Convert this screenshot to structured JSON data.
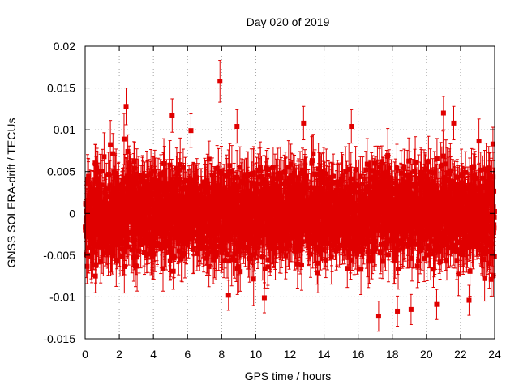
{
  "chart_data": {
    "type": "scatter",
    "title": "Day 020 of 2019",
    "xlabel": "GPS time / hours",
    "ylabel": "GNSS SOLERA-drift / TECUs",
    "xlim": [
      0,
      24
    ],
    "ylim": [
      -0.015,
      0.02
    ],
    "x_ticks": [
      0,
      2,
      4,
      6,
      8,
      10,
      12,
      14,
      16,
      18,
      20,
      22,
      24
    ],
    "x_tick_labels": [
      "0",
      "2",
      "4",
      "6",
      "8",
      "10",
      "12",
      "14",
      "16",
      "18",
      "20",
      "22",
      "24"
    ],
    "y_ticks": [
      -0.015,
      -0.01,
      -0.005,
      0,
      0.005,
      0.01,
      0.015,
      0.02
    ],
    "y_tick_labels": [
      "-0.015",
      "-0.01",
      "-0.005",
      "0",
      "0.005",
      "0.01",
      "0.015",
      "0.02"
    ],
    "grid": true,
    "series": [
      {
        "name": "SOLERA-drift",
        "color": "#e00000",
        "marker": "square",
        "error_bars": true,
        "dense_points": {
          "count": 2880,
          "x_range": [
            0,
            24
          ],
          "y_spread_sd": 0.0035,
          "y_mean": 0.0,
          "error_half_width": 0.0025
        },
        "notable_points": [
          {
            "x": 2.4,
            "y": 0.0128,
            "err": 0.0022
          },
          {
            "x": 7.9,
            "y": 0.0158,
            "err": 0.0025
          },
          {
            "x": 5.1,
            "y": 0.0117,
            "err": 0.002
          },
          {
            "x": 6.2,
            "y": 0.0099,
            "err": 0.002
          },
          {
            "x": 8.9,
            "y": 0.0104,
            "err": 0.002
          },
          {
            "x": 12.8,
            "y": 0.0108,
            "err": 0.002
          },
          {
            "x": 15.6,
            "y": 0.0104,
            "err": 0.002
          },
          {
            "x": 21.0,
            "y": 0.012,
            "err": 0.002
          },
          {
            "x": 21.6,
            "y": 0.0108,
            "err": 0.002
          },
          {
            "x": 17.2,
            "y": -0.0123,
            "err": 0.0018
          },
          {
            "x": 18.3,
            "y": -0.0117,
            "err": 0.0018
          },
          {
            "x": 19.1,
            "y": -0.0115,
            "err": 0.0018
          },
          {
            "x": 10.5,
            "y": -0.0101,
            "err": 0.0018
          },
          {
            "x": 8.4,
            "y": -0.0098,
            "err": 0.0018
          },
          {
            "x": 20.6,
            "y": -0.0109,
            "err": 0.0018
          },
          {
            "x": 22.5,
            "y": -0.0104,
            "err": 0.0018
          },
          {
            "x": 2.5,
            "y": 0.0074,
            "err": 0.002
          },
          {
            "x": 0.6,
            "y": -0.0075,
            "err": 0.002
          },
          {
            "x": 23.9,
            "y": 0.0083,
            "err": 0.002
          },
          {
            "x": 23.8,
            "y": -0.0079,
            "err": 0.002
          }
        ]
      }
    ]
  }
}
